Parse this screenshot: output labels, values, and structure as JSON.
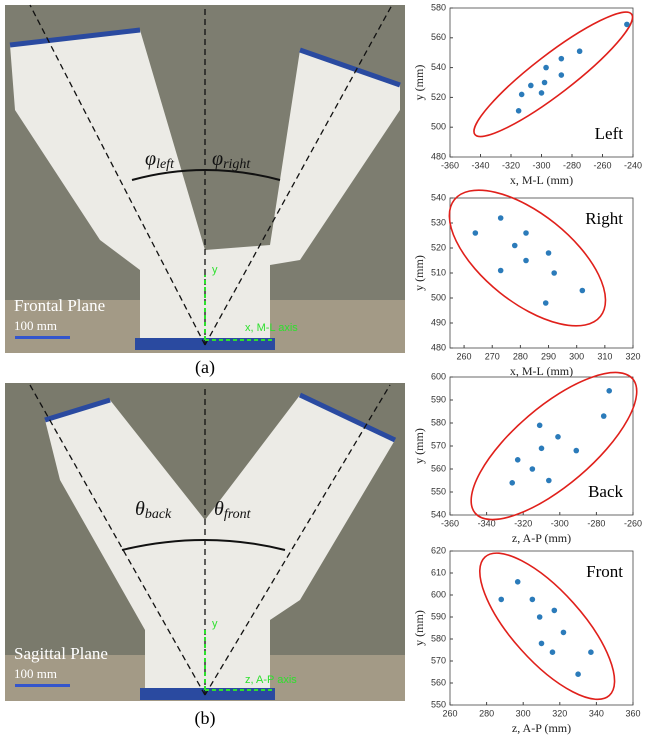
{
  "figure": {
    "panel_a": {
      "label": "(a)",
      "plane": "Frontal Plane",
      "scale": "100 mm",
      "y_axis": "y",
      "x_axis": "x, M-L axis",
      "angle_left": {
        "symbol": "φ",
        "subscript": "left"
      },
      "angle_right": {
        "symbol": "φ",
        "subscript": "right"
      }
    },
    "panel_b": {
      "label": "(b)",
      "plane": "Sagittal Plane",
      "scale": "100 mm",
      "y_axis": "y",
      "x_axis": "z, A-P axis",
      "angle_left": {
        "symbol": "θ",
        "subscript": "back"
      },
      "angle_right": {
        "symbol": "θ",
        "subscript": "front"
      }
    }
  },
  "chart_data": [
    {
      "type": "scatter",
      "annotation": "Left",
      "x_label": "x, M-L (mm)",
      "y_label": "y (mm)",
      "color": "#2b7bba",
      "ellipse_color": "#e0201b",
      "x": [
        -244,
        -275,
        -287,
        -287,
        -297,
        -298,
        -300,
        -307,
        -313,
        -315
      ],
      "values": [
        569,
        551,
        546,
        535,
        540,
        530,
        523,
        528,
        522,
        511
      ],
      "xlim": [
        -360,
        -240
      ],
      "xticks": [
        -360,
        -340,
        -320,
        -300,
        -280,
        -260,
        -240
      ],
      "ylim": [
        480,
        580
      ],
      "yticks": [
        480,
        500,
        520,
        540,
        560,
        580
      ]
    },
    {
      "type": "scatter",
      "annotation": "Right",
      "x_label": "x, M-L (mm)",
      "y_label": "y (mm)",
      "color": "#2b7bba",
      "ellipse_color": "#e0201b",
      "x": [
        264,
        273,
        273,
        278,
        282,
        282,
        290,
        292,
        289,
        302
      ],
      "values": [
        526,
        532,
        511,
        521,
        526,
        515,
        518,
        510,
        498,
        503
      ],
      "xlim": [
        255,
        320
      ],
      "xticks": [
        260,
        270,
        280,
        290,
        300,
        310,
        320
      ],
      "ylim": [
        480,
        540
      ],
      "yticks": [
        480,
        490,
        500,
        510,
        520,
        530,
        540
      ]
    },
    {
      "type": "scatter",
      "annotation": "Back",
      "x_label": "z, A-P (mm)",
      "y_label": "y (mm)",
      "color": "#2b7bba",
      "ellipse_color": "#e0201b",
      "x": [
        -273,
        -276,
        -301,
        -291,
        -311,
        -310,
        -323,
        -315,
        -306,
        -326
      ],
      "values": [
        594,
        583,
        574,
        568,
        579,
        569,
        564,
        560,
        555,
        554
      ],
      "xlim": [
        -360,
        -260
      ],
      "xticks": [
        -360,
        -340,
        -320,
        -300,
        -280,
        -260
      ],
      "ylim": [
        540,
        600
      ],
      "yticks": [
        540,
        550,
        560,
        570,
        580,
        590,
        600
      ]
    },
    {
      "type": "scatter",
      "annotation": "Front",
      "x_label": "z, A-P (mm)",
      "y_label": "y (mm)",
      "color": "#2b7bba",
      "ellipse_color": "#e0201b",
      "x": [
        288,
        297,
        305,
        309,
        317,
        310,
        322,
        316,
        330,
        337
      ],
      "values": [
        598,
        606,
        598,
        590,
        593,
        578,
        583,
        574,
        564,
        574
      ],
      "xlim": [
        260,
        360
      ],
      "xticks": [
        260,
        280,
        300,
        320,
        340,
        360
      ],
      "ylim": [
        550,
        620
      ],
      "yticks": [
        550,
        560,
        570,
        580,
        590,
        600,
        610,
        620
      ]
    }
  ]
}
